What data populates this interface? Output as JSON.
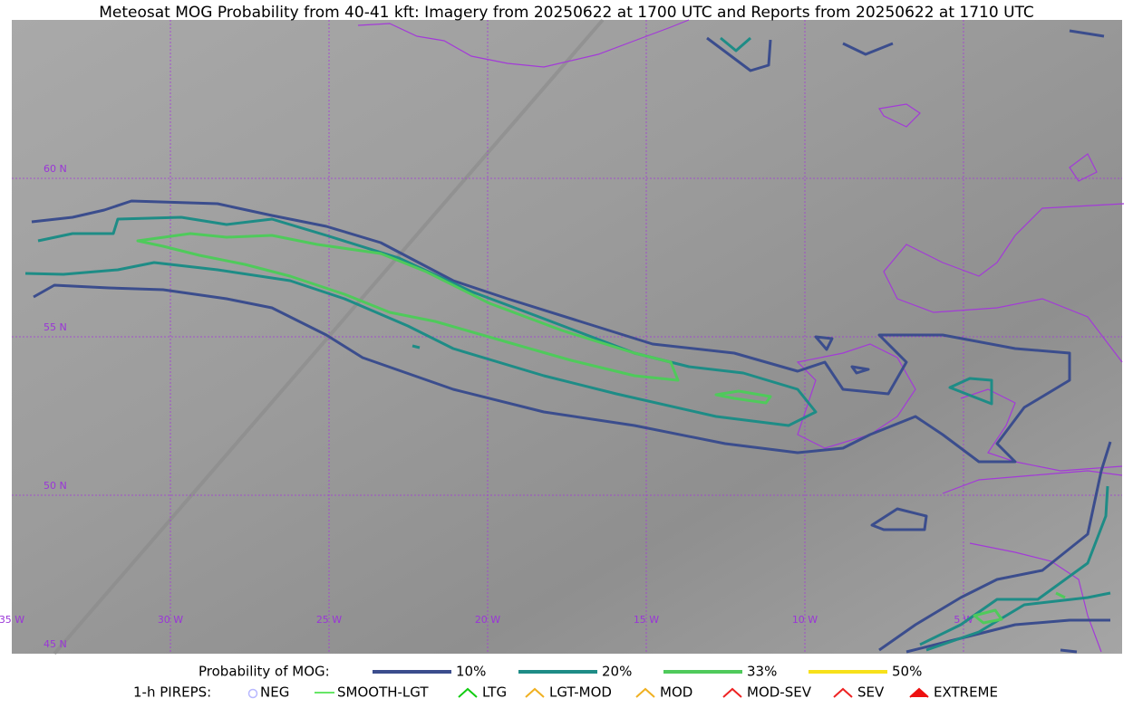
{
  "header": {
    "title": "Meteosat MOG Probability from 40-41 kft: Imagery from 20250622 at 1700 UTC and Reports from 20250622 at 1710 UTC"
  },
  "map": {
    "lat_labels": [
      "60 N",
      "55 N",
      "50 N",
      "45 N"
    ],
    "lon_labels": [
      "35 W",
      "30 W",
      "25 W",
      "20 W",
      "15 W",
      "10 W",
      "5 W"
    ]
  },
  "legend": {
    "probability_title": "Probability of MOG:",
    "levels": [
      {
        "label": "10%",
        "color": "#3b4d8d"
      },
      {
        "label": "20%",
        "color": "#1e8c86"
      },
      {
        "label": "33%",
        "color": "#4fca5b"
      },
      {
        "label": "50%",
        "color": "#f7e11b"
      }
    ],
    "pireps_title": "1-h PIREPS:",
    "pireps": [
      {
        "label": "NEG",
        "color": "#b8b8ff"
      },
      {
        "label": "SMOOTH-LGT",
        "color": "#33dd33"
      },
      {
        "label": "LTG",
        "color": "#11cc11"
      },
      {
        "label": "LGT-MOD",
        "color": "#f0b020"
      },
      {
        "label": "MOD",
        "color": "#f0b020"
      },
      {
        "label": "MOD-SEV",
        "color": "#ee2222"
      },
      {
        "label": "SEV",
        "color": "#ee2222"
      },
      {
        "label": "EXTREME",
        "color": "#ee1111"
      }
    ]
  }
}
